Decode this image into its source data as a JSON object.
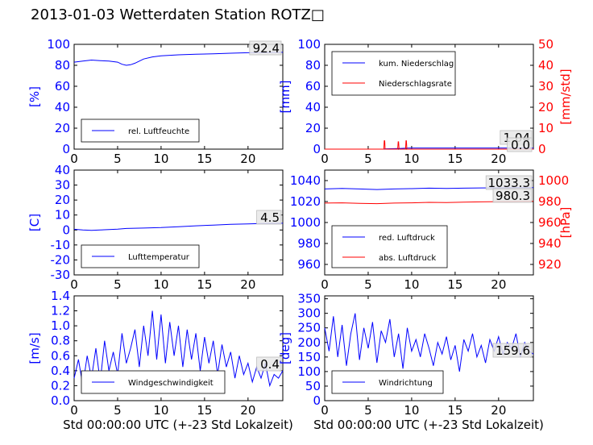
{
  "title": "2013-01-03 Wetterdaten Station ROTZ□",
  "xlabel_bottom": "Std 00:00:00 UTC (+-23 Std Lokalzeit)",
  "colors": {
    "primary": "#0000ff",
    "secondary": "#ff0000",
    "axis": "#000000"
  },
  "chart_data": [
    {
      "id": "humidity",
      "type": "line",
      "ylabel": "[%]",
      "xlim": [
        0,
        24
      ],
      "ylim": [
        0,
        100
      ],
      "xticks": [
        0,
        5,
        10,
        15,
        20
      ],
      "yticks": [
        0,
        20,
        40,
        60,
        80,
        100
      ],
      "legend": [
        "rel. Luftfeuchte"
      ],
      "legend_position": "lower-center",
      "last_value": "92.4",
      "series": [
        {
          "name": "rel. Luftfeuchte",
          "axis": "left",
          "color": "#0000ff",
          "x": [
            0,
            1,
            2,
            3,
            4,
            5,
            5.5,
            6,
            6.5,
            7,
            8,
            9,
            10,
            12,
            14,
            16,
            18,
            20,
            22,
            24
          ],
          "y": [
            83,
            84,
            85,
            84.5,
            84,
            83,
            81,
            80,
            80.5,
            82,
            86,
            88,
            89,
            90,
            90.5,
            91,
            91.5,
            92,
            92.2,
            92.4
          ]
        }
      ]
    },
    {
      "id": "precipitation",
      "type": "line",
      "ylabel": "[mm]",
      "y2label": "[mm/std]",
      "xlim": [
        0,
        24
      ],
      "ylim": [
        0,
        100
      ],
      "y2lim": [
        0,
        50
      ],
      "xticks": [
        0,
        5,
        10,
        15,
        20
      ],
      "yticks": [
        0,
        20,
        40,
        60,
        80,
        100
      ],
      "y2ticks": [
        0,
        10,
        20,
        30,
        40,
        50
      ],
      "legend": [
        "kum. Niederschlag",
        "Niederschlagsrate"
      ],
      "legend_position": "upper-left",
      "last_value": "1.04",
      "last_value2": "0.0",
      "series": [
        {
          "name": "kum. Niederschlag",
          "axis": "left",
          "color": "#0000ff",
          "x": [
            0,
            6.8,
            7,
            8.5,
            9.5,
            10,
            24
          ],
          "y": [
            0,
            0,
            0.3,
            0.6,
            0.9,
            1.04,
            1.04
          ]
        },
        {
          "name": "Niederschlagsrate",
          "axis": "right",
          "color": "#ff0000",
          "x": [
            0,
            6.8,
            6.85,
            6.9,
            6.95,
            7.2,
            8.4,
            8.45,
            8.5,
            8.55,
            9.3,
            9.35,
            9.4,
            9.45,
            9.8,
            24
          ],
          "y": [
            0,
            0,
            4,
            4,
            0,
            0,
            0,
            3.5,
            3.5,
            0,
            0,
            4,
            4,
            0,
            0,
            0
          ]
        }
      ]
    },
    {
      "id": "temperature",
      "type": "line",
      "ylabel": "[C]",
      "xlim": [
        0,
        24
      ],
      "ylim": [
        -30,
        40
      ],
      "xticks": [
        0,
        5,
        10,
        15,
        20
      ],
      "yticks": [
        -30,
        -20,
        -10,
        0,
        10,
        20,
        30,
        40
      ],
      "legend": [
        "Lufttemperatur"
      ],
      "legend_position": "lower-center",
      "last_value": "4.5",
      "series": [
        {
          "name": "Lufttemperatur",
          "axis": "left",
          "color": "#0000ff",
          "x": [
            0,
            1,
            2,
            3,
            4,
            5,
            6,
            8,
            10,
            12,
            14,
            16,
            18,
            20,
            22,
            24
          ],
          "y": [
            0.5,
            0,
            -0.2,
            0,
            0.3,
            0.6,
            1.0,
            1.3,
            1.6,
            2.2,
            2.8,
            3.3,
            3.8,
            4.1,
            4.4,
            4.5
          ]
        }
      ]
    },
    {
      "id": "pressure",
      "type": "line",
      "ylabel": "",
      "y2label": "[hPa]",
      "xlim": [
        0,
        24
      ],
      "ylim": [
        950,
        1050
      ],
      "y2lim": [
        910,
        1010
      ],
      "xticks": [
        0,
        5,
        10,
        15,
        20
      ],
      "yticks": [
        960,
        980,
        1000,
        1020,
        1040
      ],
      "y2ticks": [
        920,
        940,
        960,
        980,
        1000
      ],
      "legend": [
        "red. Luftdruck",
        "abs. Luftdruck"
      ],
      "legend_position": "lower-left",
      "last_value": "1033.3",
      "last_value2": "980.3",
      "series": [
        {
          "name": "red. Luftdruck",
          "axis": "left",
          "color": "#0000ff",
          "x": [
            0,
            2,
            4,
            6,
            8,
            10,
            12,
            14,
            16,
            18,
            20,
            22,
            24
          ],
          "y": [
            1032,
            1032.5,
            1032,
            1031.5,
            1032,
            1032.3,
            1032.8,
            1032.5,
            1032.8,
            1033,
            1033.1,
            1033.2,
            1033.3
          ]
        },
        {
          "name": "abs. Luftdruck",
          "axis": "right",
          "color": "#ff0000",
          "x": [
            0,
            2,
            4,
            6,
            8,
            10,
            12,
            14,
            16,
            18,
            20,
            22,
            24
          ],
          "y": [
            978.5,
            978.8,
            978.3,
            978,
            978.5,
            978.8,
            979.2,
            979,
            979.4,
            979.7,
            979.9,
            980.1,
            980.3
          ]
        }
      ]
    },
    {
      "id": "windspeed",
      "type": "line",
      "ylabel": "[m/s]",
      "xlim": [
        0,
        24
      ],
      "ylim": [
        0,
        1.4
      ],
      "xticks": [
        0,
        5,
        10,
        15,
        20
      ],
      "yticks": [
        0.0,
        0.2,
        0.4,
        0.6,
        0.8,
        1.0,
        1.2,
        1.4
      ],
      "legend": [
        "Windgeschwindigkeit"
      ],
      "legend_position": "lower-center",
      "last_value": "0.4",
      "series": [
        {
          "name": "Windgeschwindigkeit",
          "axis": "left",
          "color": "#0000ff",
          "x": [
            0,
            0.5,
            1,
            1.5,
            2,
            2.5,
            3,
            3.5,
            4,
            4.5,
            5,
            5.5,
            6,
            6.5,
            7,
            7.5,
            8,
            8.5,
            9,
            9.5,
            10,
            10.5,
            11,
            11.5,
            12,
            12.5,
            13,
            13.5,
            14,
            14.5,
            15,
            15.5,
            16,
            16.5,
            17,
            17.5,
            18,
            18.5,
            19,
            19.5,
            20,
            20.5,
            21,
            21.5,
            22,
            22.5,
            23,
            23.5,
            24
          ],
          "y": [
            0.3,
            0.55,
            0.2,
            0.6,
            0.3,
            0.7,
            0.25,
            0.8,
            0.4,
            0.65,
            0.35,
            0.9,
            0.5,
            0.7,
            0.95,
            0.45,
            1.0,
            0.6,
            1.2,
            0.55,
            1.15,
            0.5,
            1.05,
            0.6,
            1.0,
            0.45,
            0.95,
            0.55,
            0.9,
            0.4,
            0.85,
            0.5,
            0.8,
            0.35,
            0.75,
            0.45,
            0.65,
            0.3,
            0.6,
            0.35,
            0.5,
            0.25,
            0.45,
            0.3,
            0.5,
            0.2,
            0.35,
            0.3,
            0.4
          ]
        }
      ]
    },
    {
      "id": "winddirection",
      "type": "line",
      "ylabel": "[deg]",
      "xlim": [
        0,
        24
      ],
      "ylim": [
        0,
        360
      ],
      "xticks": [
        0,
        5,
        10,
        15,
        20
      ],
      "yticks": [
        0,
        50,
        100,
        150,
        200,
        250,
        300,
        350
      ],
      "legend": [
        "Windrichtung"
      ],
      "legend_position": "lower-left",
      "last_value": "159.6",
      "series": [
        {
          "name": "Windrichtung",
          "axis": "left",
          "color": "#0000ff",
          "x": [
            0,
            0.5,
            1,
            1.5,
            2,
            2.5,
            3,
            3.5,
            4,
            4.5,
            5,
            5.5,
            6,
            6.5,
            7,
            7.5,
            8,
            8.5,
            9,
            9.5,
            10,
            10.5,
            11,
            11.5,
            12,
            12.5,
            13,
            13.5,
            14,
            14.5,
            15,
            15.5,
            16,
            16.5,
            17,
            17.5,
            18,
            18.5,
            19,
            19.5,
            20,
            20.5,
            21,
            21.5,
            22,
            22.5,
            23,
            23.5,
            24
          ],
          "y": [
            250,
            170,
            290,
            150,
            260,
            120,
            230,
            300,
            140,
            250,
            180,
            270,
            130,
            240,
            200,
            280,
            150,
            230,
            110,
            250,
            170,
            210,
            150,
            230,
            180,
            120,
            200,
            160,
            220,
            140,
            190,
            100,
            210,
            170,
            230,
            150,
            190,
            130,
            210,
            170,
            220,
            160,
            200,
            180,
            230,
            150,
            200,
            170,
            160
          ]
        }
      ]
    }
  ]
}
